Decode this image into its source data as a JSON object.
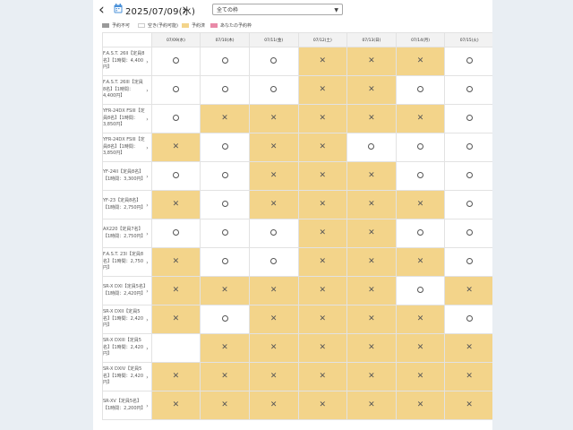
{
  "header": {
    "prev_label": "‹",
    "next_label": "›",
    "date": "2025/07/09(水)",
    "filter_value": "全ての枠"
  },
  "legend": [
    {
      "label": "予約不可",
      "color": "#9a9a9a"
    },
    {
      "label": "空き(予約可能)",
      "color": "#ffffff"
    },
    {
      "label": "予約済",
      "color": "#f3d48a"
    },
    {
      "label": "あなたの予約枠",
      "color": "#e98aa8"
    }
  ],
  "days": [
    "07/09(水)",
    "07/10(木)",
    "07/11(金)",
    "07/12(土)",
    "07/13(日)",
    "07/14(月)",
    "07/15(火)"
  ],
  "rows": [
    {
      "label": "F.A.S.T. 26II【定員8名】【1時間：4,400円】",
      "slots": [
        "o",
        "o",
        "o",
        "x",
        "x",
        "x",
        "o"
      ]
    },
    {
      "label": "F.A.S.T. 26III【定員8名】【1時間：4,400円】",
      "slots": [
        "o",
        "o",
        "o",
        "x",
        "x",
        "o",
        "o"
      ]
    },
    {
      "label": "YFR-24DX FSIII【定員8名】【1時間：3,850円】",
      "slots": [
        "o",
        "x",
        "x",
        "x",
        "x",
        "x",
        "o"
      ]
    },
    {
      "label": "YFR-24DX FSIII【定員8名】【1時間：3,850円】",
      "slots": [
        "x",
        "o",
        "x",
        "x",
        "o",
        "o",
        "o"
      ]
    },
    {
      "label": "YF-24II【定員8名】【1時間：3,300円】",
      "slots": [
        "o",
        "o",
        "x",
        "x",
        "x",
        "o",
        "o"
      ]
    },
    {
      "label": "YF-23【定員8名】【1時間：2,750円】",
      "slots": [
        "x",
        "o",
        "x",
        "x",
        "x",
        "x",
        "o"
      ]
    },
    {
      "label": "AX220【定員7名】【1時間：2,750円】",
      "slots": [
        "o",
        "o",
        "o",
        "x",
        "x",
        "o",
        "o"
      ]
    },
    {
      "label": "F.A.S.T. 23I【定員8名】【1時間：2,750円】",
      "slots": [
        "x",
        "o",
        "o",
        "x",
        "x",
        "x",
        "o"
      ]
    },
    {
      "label": "SR-X DXI【定員5名】【1時間：2,420円】",
      "slots": [
        "x",
        "x",
        "x",
        "x",
        "x",
        "o",
        "x"
      ]
    },
    {
      "label": "SR-X DXII【定員5名】【1時間：2,420円】",
      "slots": [
        "x",
        "o",
        "x",
        "x",
        "x",
        "x",
        "o"
      ]
    },
    {
      "label": "SR-X DXIII【定員5名】【1時間：2,420円】",
      "slots": [
        "",
        "x",
        "x",
        "x",
        "x",
        "x",
        "x"
      ]
    },
    {
      "label": "SR-X DXIV【定員5名】【1時間：2,420円】",
      "slots": [
        "x",
        "x",
        "x",
        "x",
        "x",
        "x",
        "x"
      ]
    },
    {
      "label": "SR-XV【定員5名】【1時間：2,200円】",
      "slots": [
        "x",
        "x",
        "x",
        "x",
        "x",
        "x",
        "x"
      ]
    }
  ]
}
